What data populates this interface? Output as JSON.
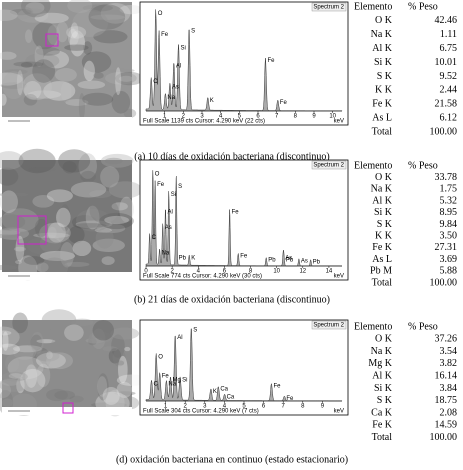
{
  "panels": [
    {
      "caption": "(a) 10 días de oxidación bacteriana (discontinuo)",
      "spectrum_title": "Spectrum 2",
      "footer": "Full Scale 1139 cts Cursor: 4.290 keV (22 cts)",
      "unit": "keV",
      "xticks": [
        "1",
        "2",
        "3",
        "4",
        "5",
        "6",
        "7",
        "8",
        "9",
        "10"
      ],
      "peak_labels": [
        "C",
        "O",
        "Fe",
        "Na",
        "As",
        "Al",
        "Si",
        "S",
        "K",
        "Fe",
        "Fe"
      ],
      "header": [
        "Elemento",
        "% Peso"
      ],
      "rows": [
        [
          "O K",
          "42.46"
        ],
        [
          "Na K",
          "1.11"
        ],
        [
          "Al K",
          "6.75"
        ],
        [
          "Si K",
          "10.01"
        ],
        [
          "S K",
          "9.52"
        ],
        [
          "K K",
          "2.44"
        ],
        [
          "Fe K",
          "21.58"
        ],
        [
          "As L",
          "6.12"
        ],
        [
          "Total",
          "100.00"
        ]
      ]
    },
    {
      "caption": "(b) 21 días de oxidación bacteriana (discontinuo)",
      "spectrum_title": "Spectrum 2",
      "footer": "Full Scale 774 cts Cursor: 4.290 keV (30 cts)",
      "unit": "keV",
      "xticks": [
        "0",
        "2",
        "4",
        "6",
        "8",
        "10",
        "12",
        "14"
      ],
      "peak_labels": [
        "C",
        "O",
        "Fe",
        "Na",
        "As",
        "Al",
        "Si",
        "S",
        "Pb",
        "K",
        "Fe",
        "Fe",
        "Pb",
        "As",
        "Pb",
        "As",
        "Pb"
      ],
      "header": [
        "Elemento",
        "% Peso"
      ],
      "rows": [
        [
          "O K",
          "33.78"
        ],
        [
          "Na K",
          "1.75"
        ],
        [
          "Al K",
          "5.32"
        ],
        [
          "Si K",
          "8.95"
        ],
        [
          "S K",
          "9.84"
        ],
        [
          "K K",
          "3.50"
        ],
        [
          "Fe K",
          "27.31"
        ],
        [
          "As L",
          "3.69"
        ],
        [
          "Pb M",
          "5.88"
        ],
        [
          "Total",
          "100.00"
        ]
      ]
    },
    {
      "caption": "(d) oxidación bacteriana en continuo (estado estacionario)",
      "spectrum_title": "Spectrum 2",
      "footer": "Full Scale 304 cts Cursor: 4.290 keV (7 cts)",
      "unit": "keV",
      "xticks": [
        "1",
        "2",
        "3",
        "4",
        "5",
        "6",
        "7",
        "8",
        "9"
      ],
      "peak_labels": [
        "C",
        "O",
        "Fe",
        "Na",
        "Mg",
        "Al",
        "Si",
        "S",
        "K",
        "Ca",
        "Ca",
        "Fe",
        "Fe"
      ],
      "header": [
        "Elemento",
        "% Peso"
      ],
      "rows": [
        [
          "O K",
          "37.26"
        ],
        [
          "Na K",
          "3.54"
        ],
        [
          "Mg K",
          "3.82"
        ],
        [
          "Al K",
          "16.14"
        ],
        [
          "Si K",
          "3.84"
        ],
        [
          "S K",
          "18.75"
        ],
        [
          "Ca K",
          "2.08"
        ],
        [
          "Fe K",
          "14.59"
        ],
        [
          "Total",
          "100.00"
        ]
      ]
    }
  ]
}
